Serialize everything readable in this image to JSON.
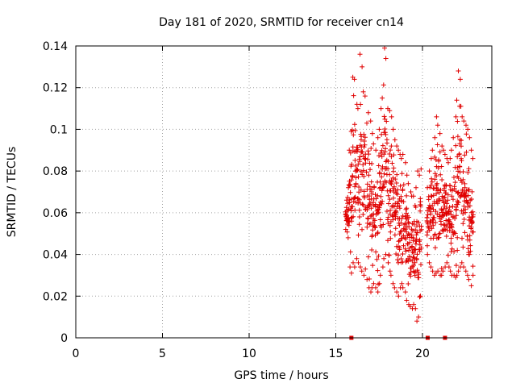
{
  "chart_data": {
    "type": "scatter",
    "title": "Day 181 of 2020, SRMTID for receiver cn14",
    "xlabel": "GPS time / hours",
    "ylabel": "SRMTID / TECUs",
    "xlim": [
      0,
      24
    ],
    "ylim": [
      0,
      0.14
    ],
    "xticks": [
      0,
      5,
      10,
      15,
      20
    ],
    "xtick_labels": [
      "0",
      "5",
      "10",
      "15",
      "20"
    ],
    "yticks": [
      0,
      0.02,
      0.04,
      0.06,
      0.08,
      0.1,
      0.12,
      0.14
    ],
    "ytick_labels": [
      "0",
      "0.02",
      "0.04",
      "0.06",
      "0.08",
      "0.1",
      "0.12",
      "0.14"
    ],
    "grid": true,
    "marker": "plus",
    "color": "#e00000",
    "series": [
      {
        "name": "SRMTID",
        "note": "approximately 900 samples between 15.5 h and 23.0 h; values estimated from gridlines",
        "x": [
          15.6,
          15.7,
          15.8,
          15.9,
          16.0,
          16.1,
          16.2,
          16.3,
          16.4,
          16.5,
          16.6,
          16.7,
          16.8,
          16.9,
          17.0,
          17.1,
          17.2,
          17.3,
          17.4,
          17.5,
          17.6,
          17.7,
          17.8,
          17.9,
          18.0,
          18.1,
          18.2,
          18.3,
          18.4,
          18.5,
          18.6,
          18.7,
          18.8,
          18.9,
          19.0,
          19.1,
          19.2,
          19.3,
          19.4,
          19.5,
          19.6,
          19.7,
          19.8,
          19.9,
          20.3,
          20.4,
          20.5,
          20.6,
          20.7,
          20.8,
          20.9,
          21.0,
          21.1,
          21.2,
          21.3,
          21.4,
          21.5,
          21.6,
          21.7,
          21.8,
          21.9,
          22.0,
          22.1,
          22.2,
          22.3,
          22.4,
          22.5,
          22.6,
          22.7,
          22.8,
          22.9
        ],
        "min": [
          0.052,
          0.048,
          0.034,
          0.031,
          0.036,
          0.034,
          0.038,
          0.036,
          0.034,
          0.032,
          0.03,
          0.033,
          0.028,
          0.024,
          0.022,
          0.024,
          0.026,
          0.024,
          0.022,
          0.026,
          0.03,
          0.034,
          0.038,
          0.04,
          0.036,
          0.032,
          0.03,
          0.026,
          0.024,
          0.022,
          0.02,
          0.024,
          0.026,
          0.024,
          0.022,
          0.018,
          0.016,
          0.015,
          0.014,
          0.016,
          0.014,
          0.008,
          0.01,
          0.02,
          0.04,
          0.036,
          0.034,
          0.032,
          0.03,
          0.031,
          0.032,
          0.03,
          0.03,
          0.032,
          0.034,
          0.036,
          0.034,
          0.032,
          0.03,
          0.03,
          0.029,
          0.03,
          0.032,
          0.034,
          0.036,
          0.034,
          0.032,
          0.03,
          0.028,
          0.025,
          0.03
        ],
        "max": [
          0.066,
          0.072,
          0.09,
          0.099,
          0.125,
          0.124,
          0.112,
          0.11,
          0.136,
          0.13,
          0.118,
          0.116,
          0.103,
          0.108,
          0.104,
          0.098,
          0.093,
          0.09,
          0.096,
          0.1,
          0.11,
          0.115,
          0.139,
          0.134,
          0.11,
          0.109,
          0.106,
          0.1,
          0.095,
          0.092,
          0.09,
          0.088,
          0.086,
          0.088,
          0.084,
          0.078,
          0.074,
          0.07,
          0.068,
          0.068,
          0.072,
          0.08,
          0.078,
          0.081,
          0.072,
          0.08,
          0.086,
          0.09,
          0.096,
          0.106,
          0.102,
          0.098,
          0.092,
          0.09,
          0.088,
          0.086,
          0.084,
          0.086,
          0.09,
          0.096,
          0.106,
          0.114,
          0.128,
          0.124,
          0.106,
          0.104,
          0.102,
          0.1,
          0.096,
          0.09,
          0.086
        ],
        "ground_markers_x": [
          15.9,
          20.3,
          21.3
        ]
      }
    ]
  }
}
